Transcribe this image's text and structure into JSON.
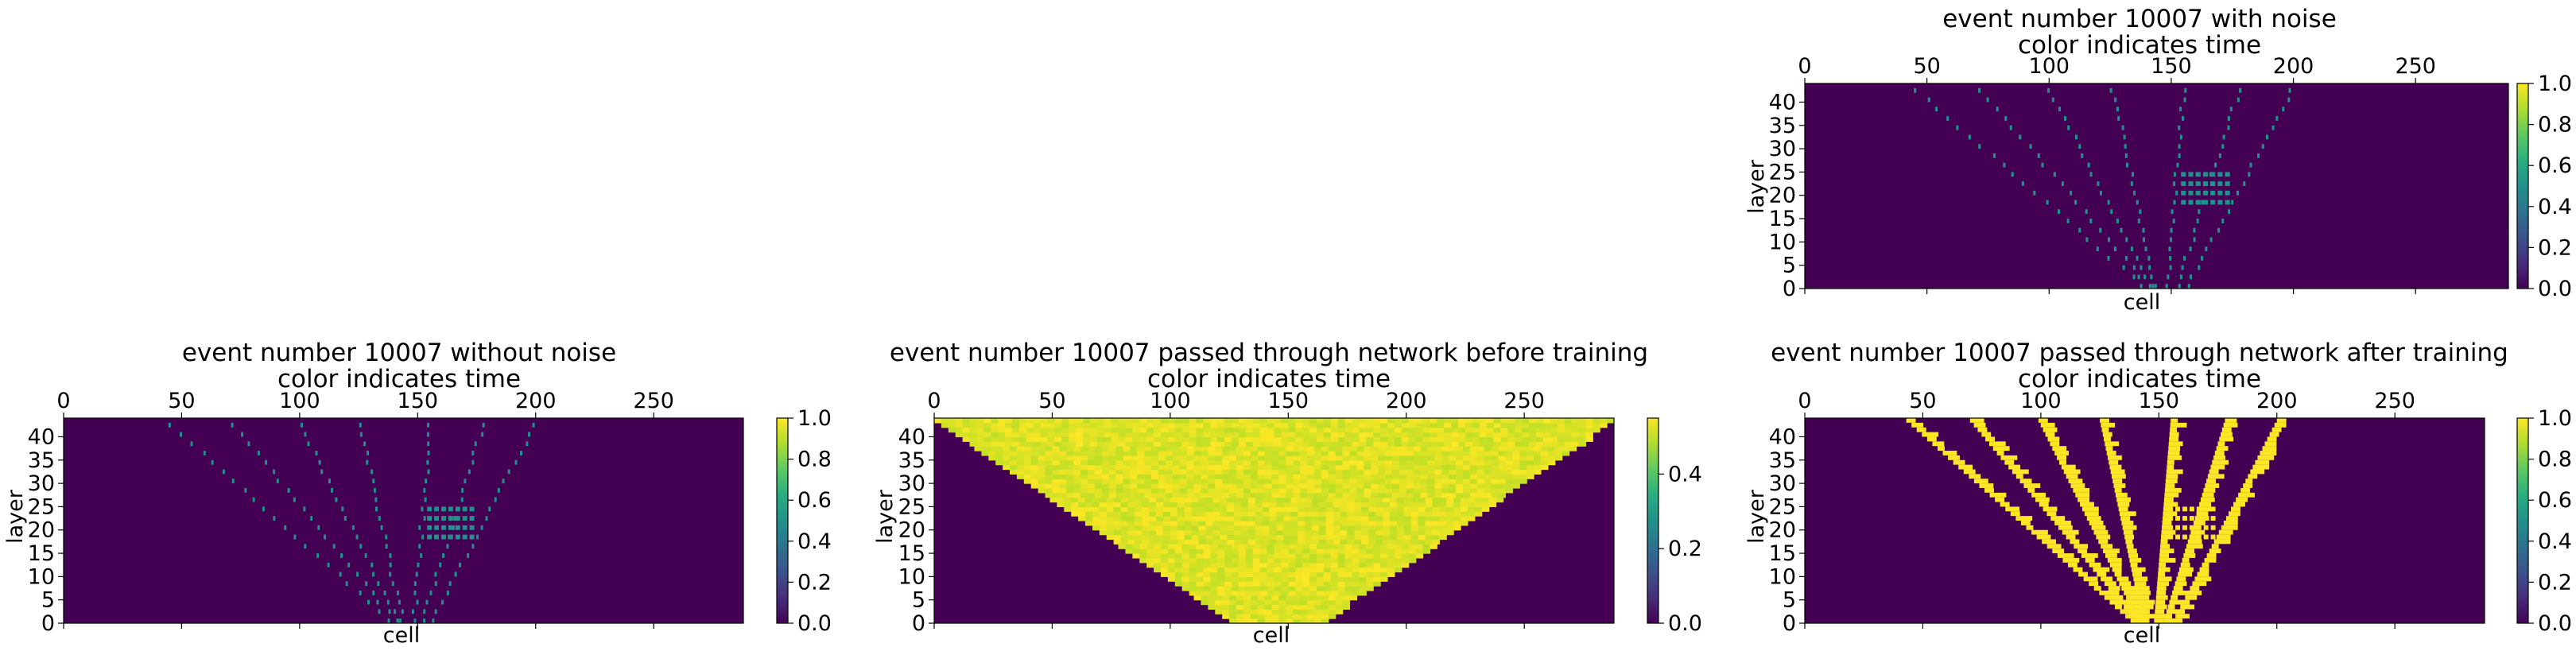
{
  "chart_data": [
    {
      "id": "with-noise",
      "type": "heatmap",
      "title": "event number 10007 with noise",
      "subtitle": "color indicates time",
      "xlabel": "cell",
      "ylabel": "layer",
      "xlim": [
        0,
        288
      ],
      "ylim": [
        0,
        44
      ],
      "xticks": [
        0,
        50,
        100,
        150,
        200,
        250
      ],
      "yticks": [
        0,
        5,
        10,
        15,
        20,
        25,
        30,
        35,
        40
      ],
      "colorbar": {
        "min": 0.0,
        "max": 1.0,
        "ticks": [
          "0.0",
          "0.2",
          "0.4",
          "0.6",
          "0.8",
          "1.0"
        ]
      },
      "background": 0.0,
      "content": "sparse tracks",
      "active_value": 0.5
    },
    {
      "id": "without-noise",
      "type": "heatmap",
      "title": "event number 10007 without noise",
      "subtitle": "color indicates time",
      "xlabel": "cell",
      "ylabel": "layer",
      "xlim": [
        0,
        288
      ],
      "ylim": [
        0,
        44
      ],
      "xticks": [
        0,
        50,
        100,
        150,
        200,
        250
      ],
      "yticks": [
        0,
        5,
        10,
        15,
        20,
        25,
        30,
        35,
        40
      ],
      "colorbar": {
        "min": 0.0,
        "max": 1.0,
        "ticks": [
          "0.0",
          "0.2",
          "0.4",
          "0.6",
          "0.8",
          "1.0"
        ]
      },
      "background": 0.0,
      "content": "sparse tracks",
      "active_value": 0.5
    },
    {
      "id": "before-training",
      "type": "heatmap",
      "title": "event number 10007 passed through network before training",
      "subtitle": "color indicates time",
      "xlabel": "cell",
      "ylabel": "layer",
      "xlim": [
        0,
        288
      ],
      "ylim": [
        0,
        44
      ],
      "xticks": [
        0,
        50,
        100,
        150,
        200,
        250
      ],
      "yticks": [
        0,
        5,
        10,
        15,
        20,
        25,
        30,
        35,
        40
      ],
      "colorbar": {
        "min": 0.0,
        "max": 0.55,
        "ticks": [
          "0.0",
          "0.2",
          "0.4"
        ]
      },
      "background": 0.0,
      "content": "uniform region widening from bottom to top",
      "region_bottom_cells": [
        125,
        165
      ],
      "region_top_cells": [
        0,
        288
      ],
      "active_range": [
        0.45,
        0.55
      ]
    },
    {
      "id": "after-training",
      "type": "heatmap",
      "title": "event number 10007 passed through network after training",
      "subtitle": "color indicates time",
      "xlabel": "cell",
      "ylabel": "layer",
      "xlim": [
        0,
        288
      ],
      "ylim": [
        0,
        44
      ],
      "xticks": [
        0,
        50,
        100,
        150,
        200,
        250
      ],
      "yticks": [
        0,
        5,
        10,
        15,
        20,
        25,
        30,
        35,
        40
      ],
      "colorbar": {
        "min": 0.0,
        "max": 1.0,
        "ticks": [
          "0.0",
          "0.2",
          "0.4",
          "0.6",
          "0.8",
          "1.0"
        ]
      },
      "background": 0.0,
      "content": "thick tracks",
      "active_value": 1.0
    }
  ],
  "tracks": [
    {
      "bottom_cell": 138,
      "top_cell": 43
    },
    {
      "bottom_cell": 140,
      "top_cell": 70
    },
    {
      "bottom_cell": 141,
      "top_cell": 99
    },
    {
      "bottom_cell": 143,
      "top_cell": 125
    },
    {
      "bottom_cell": 148,
      "top_cell": 155
    },
    {
      "bottom_cell": 152,
      "top_cell": 178
    },
    {
      "bottom_cell": 156,
      "top_cell": 200
    }
  ],
  "colors": {
    "background": "#440154",
    "track": "#21918c",
    "bright": "#fde725",
    "before_low": "#bddf26",
    "before_high": "#fde725"
  }
}
